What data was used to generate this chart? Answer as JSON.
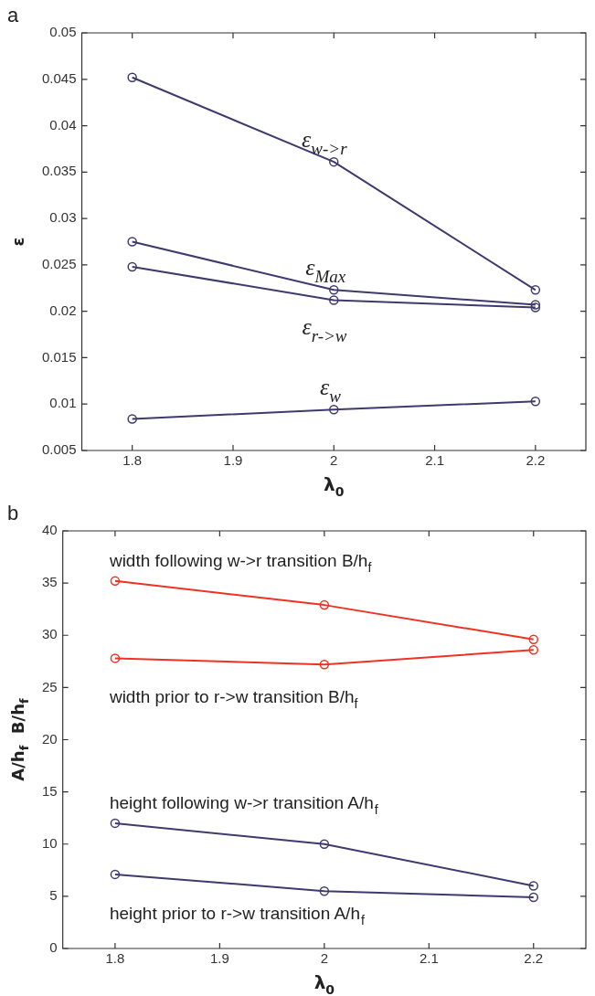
{
  "chart_data": [
    {
      "type": "line",
      "title": "a",
      "xlabel": "λ$_{0}$",
      "ylabel": "ε",
      "x": [
        1.8,
        2.0,
        2.2
      ],
      "series": [
        {
          "name": "ε$_{w->r}$",
          "color": "#3f3a6e",
          "values": [
            0.0452,
            0.0361,
            0.0223
          ]
        },
        {
          "name": "ε$_{Max}$",
          "color": "#3f3a6e",
          "values": [
            0.0275,
            0.0223,
            0.0207
          ]
        },
        {
          "name": "ε$_{r->w}$",
          "color": "#3f3a6e",
          "values": [
            0.0248,
            0.0212,
            0.0204
          ]
        },
        {
          "name": "ε$_{w}$",
          "color": "#3f3a6e",
          "values": [
            0.0084,
            0.0094,
            0.0103
          ]
        }
      ],
      "xlim": [
        1.75,
        2.25
      ],
      "xticks": [
        1.8,
        1.9,
        2,
        2.1,
        2.2
      ],
      "ylim": [
        0.005,
        0.05
      ],
      "yticks": [
        0.005,
        0.01,
        0.015,
        0.02,
        0.025,
        0.03,
        0.035,
        0.04,
        0.045,
        0.05
      ],
      "grid": false,
      "legend": false,
      "marker": "circle",
      "line_style": "solid"
    },
    {
      "type": "line",
      "title": "b",
      "xlabel": "λ$_{0}$",
      "ylabel": "A/h$_{f}$  B/h$_{f}$",
      "x": [
        1.8,
        2.0,
        2.2
      ],
      "series": [
        {
          "name": "width following w->r transition B/h$_{f}$",
          "color": "#ee3322",
          "values": [
            35.2,
            32.9,
            29.6
          ]
        },
        {
          "name": "width prior to r->w transition B/h$_{f}$",
          "color": "#ee3322",
          "values": [
            27.8,
            27.2,
            28.6
          ]
        },
        {
          "name": "height following w->r transition A/h$_{f}$",
          "color": "#3f3a6e",
          "values": [
            12,
            10,
            6
          ]
        },
        {
          "name": "height prior to r->w transition A/h$_{f}$",
          "color": "#3f3a6e",
          "values": [
            7.1,
            5.5,
            4.9
          ]
        }
      ],
      "xlim": [
        1.75,
        2.25
      ],
      "xticks": [
        1.8,
        1.9,
        2,
        2.1,
        2.2
      ],
      "ylim": [
        0,
        40
      ],
      "yticks": [
        0,
        5,
        10,
        15,
        20,
        25,
        30,
        35,
        40
      ],
      "grid": false,
      "legend": false,
      "marker": "circle",
      "line_style": "solid"
    }
  ]
}
